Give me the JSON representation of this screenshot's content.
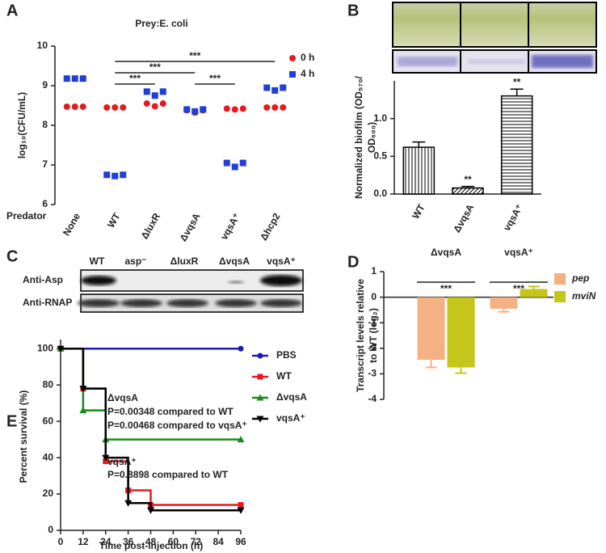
{
  "chart_data": [
    {
      "panel": "A",
      "type": "dot",
      "title": "Prey:E. coli",
      "ylabel": "log₁₀(CFU/mL)",
      "xlabel": "Predator",
      "categories": [
        "None",
        "WT",
        "ΔluxR",
        "ΔvqsA",
        "vqsA⁺",
        "Δhcp2"
      ],
      "series": [
        {
          "name": "0 h",
          "color": "#e8191c",
          "marker": "circle",
          "values": [
            [
              8.47,
              8.47,
              8.47
            ],
            [
              8.45,
              8.45,
              8.45
            ],
            [
              8.55,
              8.48,
              8.55
            ],
            [
              8.38,
              8.32,
              8.38
            ],
            [
              8.42,
              8.4,
              8.42
            ],
            [
              8.45,
              8.45,
              8.45
            ]
          ]
        },
        {
          "name": "4 h",
          "color": "#1f3fd6",
          "marker": "square",
          "values": [
            [
              9.18,
              9.18,
              9.18
            ],
            [
              6.75,
              6.72,
              6.75
            ],
            [
              8.85,
              8.75,
              8.85
            ],
            [
              8.4,
              8.35,
              8.4
            ],
            [
              7.05,
              6.95,
              7.05
            ],
            [
              8.95,
              8.88,
              8.95
            ]
          ]
        }
      ],
      "ylim": [
        6,
        10
      ],
      "yticks": [
        6,
        7,
        8,
        9,
        10
      ],
      "comparisons": [
        {
          "groups": [
            "WT",
            "Δhcp2"
          ],
          "label": "***"
        },
        {
          "groups": [
            "WT",
            "ΔvqsA"
          ],
          "label": "***"
        },
        {
          "groups": [
            "WT",
            "ΔluxR"
          ],
          "label": "***"
        },
        {
          "groups": [
            "ΔvqsA",
            "vqsA⁺"
          ],
          "label": "***"
        }
      ]
    },
    {
      "panel": "B",
      "type": "bar",
      "ylabel": [
        "Normalized biofilm (OD₅₇₀/",
        "OD₆₀₀)"
      ],
      "categories": [
        "WT",
        "ΔvqsA",
        "vqsA⁺"
      ],
      "values": [
        0.62,
        0.08,
        1.3
      ],
      "errors": [
        0.07,
        0.02,
        0.09
      ],
      "significance": [
        null,
        "**",
        "**"
      ],
      "hatch": [
        "vertical",
        "diagonal",
        "horizontal"
      ],
      "color": "#000000",
      "ylim": [
        0,
        1.5
      ],
      "yticks": [
        {
          "value": 0,
          "label": "0.0"
        },
        0.5,
        {
          "value": 1,
          "label": "1.0"
        }
      ]
    },
    {
      "panel": "D",
      "type": "grouped_bar",
      "ylabel": [
        "Transcript levels relative",
        "to WT (log₂)"
      ],
      "categories": [
        "ΔvqsA",
        "vqsA⁺"
      ],
      "series": [
        {
          "name": "pep",
          "color": "#f4b183",
          "values": [
            -2.45,
            -0.45
          ],
          "errors": [
            0.3,
            0.12
          ]
        },
        {
          "name": "mviN",
          "color": "#c5c51a",
          "values": [
            -2.75,
            0.32
          ],
          "errors": [
            0.22,
            0.1
          ]
        }
      ],
      "significance": [
        "***",
        "***"
      ],
      "ylim": [
        -4,
        1
      ],
      "yticks": [
        -4,
        -3,
        -2,
        -1,
        0,
        1
      ]
    },
    {
      "panel": "E",
      "type": "step",
      "ylabel": "Percent survival (%)",
      "xlabel": "Time post-injection (h)",
      "series": [
        {
          "name": "PBS",
          "color": "#1a1ab8",
          "marker": "circle",
          "x": [
            0,
            96
          ],
          "values": [
            100,
            100
          ]
        },
        {
          "name": "WT",
          "color": "#e8191c",
          "marker": "square",
          "x": [
            0,
            12,
            24,
            36,
            48,
            96
          ],
          "values": [
            100,
            78,
            38,
            22,
            14,
            14
          ]
        },
        {
          "name": "ΔvqsA",
          "color": "#1a8a1a",
          "marker": "triangle",
          "x": [
            0,
            12,
            24,
            96
          ],
          "values": [
            100,
            66,
            50,
            50
          ]
        },
        {
          "name": "vqsA⁺",
          "color": "#000000",
          "marker": "triangle-down",
          "x": [
            0,
            12,
            24,
            36,
            48,
            96
          ],
          "values": [
            100,
            78,
            40,
            15,
            11,
            11
          ]
        }
      ],
      "annotations": [
        "ΔvqsA",
        "P=0.00348 compared to WT",
        "P=0.00468 compared to vqsA⁺",
        "vqsA⁺",
        "P=0.8898 compared to WT"
      ],
      "xlim": [
        0,
        96
      ],
      "xticks": [
        0,
        12,
        24,
        36,
        48,
        60,
        72,
        84,
        96
      ],
      "ylim": [
        0,
        105
      ],
      "yticks": [
        0,
        20,
        40,
        60,
        80,
        100
      ]
    }
  ],
  "blot": {
    "panel": "C",
    "lanes": [
      "WT",
      "asp⁻",
      "ΔluxR",
      "ΔvqsA",
      "vqsA⁺"
    ],
    "rows": [
      "Anti-Asp",
      "Anti-RNAP"
    ]
  }
}
